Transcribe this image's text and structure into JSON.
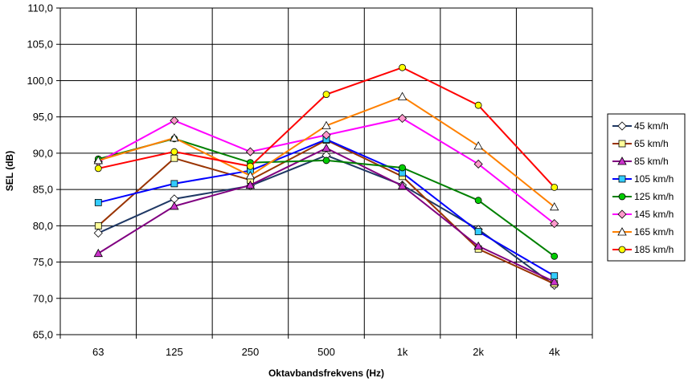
{
  "chart_data": {
    "type": "line",
    "categories": [
      "63",
      "125",
      "250",
      "500",
      "1k",
      "2k",
      "4k"
    ],
    "xlabel": "Oktavbandsfrekvens (Hz)",
    "ylabel": "SEL (dB)",
    "ylim": [
      65,
      110
    ],
    "ytick_step": 5,
    "ytick_labels": [
      "65,0",
      "70,0",
      "75,0",
      "80,0",
      "85,0",
      "90,0",
      "95,0",
      "100,0",
      "105,0",
      "110,0"
    ],
    "grid": true,
    "legend": "right",
    "series": [
      {
        "name": "45 km/h",
        "color": "#1F3864",
        "marker": "diamond",
        "marker_fill": "#FFFFFF",
        "values": [
          79.0,
          83.7,
          85.5,
          89.7,
          85.6,
          79.5,
          71.8
        ]
      },
      {
        "name": "65 km/h",
        "color": "#993300",
        "marker": "square",
        "marker_fill": "#FFFF99",
        "values": [
          80.0,
          89.3,
          86.3,
          91.8,
          86.8,
          76.8,
          72.0
        ]
      },
      {
        "name": "85 km/h",
        "color": "#800080",
        "marker": "triangle",
        "marker_fill": "#CC33CC",
        "values": [
          76.2,
          82.7,
          85.6,
          90.7,
          85.5,
          77.2,
          72.3
        ]
      },
      {
        "name": "105 km/h",
        "color": "#0000FF",
        "marker": "square",
        "marker_fill": "#33CCFF",
        "values": [
          83.2,
          85.8,
          87.6,
          91.9,
          87.3,
          79.2,
          73.1
        ]
      },
      {
        "name": "125 km/h",
        "color": "#008000",
        "marker": "circle",
        "marker_fill": "#00CC00",
        "values": [
          89.2,
          92.0,
          88.7,
          89.0,
          88.0,
          83.5,
          75.8
        ]
      },
      {
        "name": "145 km/h",
        "color": "#FF00FF",
        "marker": "diamond",
        "marker_fill": "#FF99CC",
        "values": [
          88.8,
          94.5,
          90.2,
          92.5,
          94.8,
          88.5,
          80.3
        ]
      },
      {
        "name": "165 km/h",
        "color": "#FF8000",
        "marker": "triangle",
        "marker_fill": "#FFFFFF",
        "values": [
          89.0,
          92.1,
          86.9,
          93.8,
          97.8,
          91.0,
          82.6
        ]
      },
      {
        "name": "185 km/h",
        "color": "#FF0000",
        "marker": "circle",
        "marker_fill": "#FFFF00",
        "values": [
          87.9,
          90.2,
          88.2,
          98.1,
          101.8,
          96.6,
          85.3
        ]
      }
    ]
  }
}
